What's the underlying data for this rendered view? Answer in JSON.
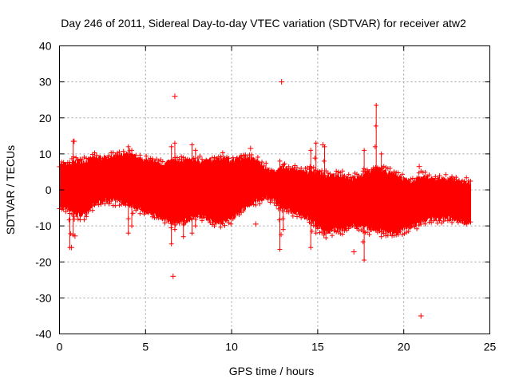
{
  "chart_data": {
    "type": "scatter",
    "title": "Day 246 of 2011, Sidereal Day-to-day VTEC variation (SDTVAR) for receiver atw2",
    "xlabel": "GPS time / hours",
    "ylabel": "SDTVAR / TECUs",
    "xlim": [
      0,
      25
    ],
    "ylim": [
      -40,
      40
    ],
    "xticks": [
      0,
      5,
      10,
      15,
      20,
      25
    ],
    "yticks": [
      -40,
      -30,
      -20,
      -10,
      0,
      10,
      20,
      30,
      40
    ],
    "grid": true,
    "color": "#ff0000",
    "marker": "plus",
    "envelope": {
      "x": [
        0.0,
        0.5,
        1.0,
        1.5,
        2.0,
        2.5,
        3.0,
        3.5,
        4.0,
        4.5,
        5.0,
        5.5,
        6.0,
        6.5,
        7.0,
        7.5,
        8.0,
        8.5,
        9.0,
        9.5,
        10.0,
        10.5,
        11.0,
        11.5,
        12.0,
        12.5,
        13.0,
        13.5,
        14.0,
        14.5,
        15.0,
        15.5,
        16.0,
        16.5,
        17.0,
        17.5,
        18.0,
        18.5,
        19.0,
        19.5,
        20.0,
        20.5,
        21.0,
        21.5,
        22.0,
        22.5,
        23.0,
        23.5,
        23.9
      ],
      "upper": [
        7,
        7,
        8,
        8,
        9,
        9,
        9,
        9.5,
        10,
        9,
        8,
        8,
        7,
        8,
        8,
        8,
        8,
        8,
        8.5,
        9,
        8,
        9,
        9,
        8,
        6,
        5,
        6,
        6,
        5,
        5,
        5,
        4,
        4,
        4,
        3,
        4,
        5,
        6,
        5,
        4,
        3,
        2,
        4,
        3,
        3,
        3,
        3,
        2,
        2
      ],
      "lower": [
        -5,
        -5,
        -7,
        -7,
        -4,
        -3,
        -3,
        -3,
        -4,
        -5,
        -6,
        -7,
        -8,
        -9,
        -9,
        -8,
        -7,
        -8,
        -9,
        -9,
        -8,
        -6,
        -4,
        -3,
        -2,
        -3,
        -5,
        -6,
        -7,
        -8,
        -10,
        -12,
        -11,
        -11,
        -10,
        -10,
        -11,
        -11,
        -12,
        -12,
        -11,
        -10,
        -9,
        -8,
        -8,
        -8,
        -8,
        -9,
        -9
      ]
    },
    "spikes": [
      {
        "x": 0.6,
        "y_min": -16,
        "y_max": 7
      },
      {
        "x": 0.8,
        "y_min": -12.5,
        "y_max": 13.5
      },
      {
        "x": 4.0,
        "y_min": -12,
        "y_max": 12
      },
      {
        "x": 4.2,
        "y_min": -10,
        "y_max": 11
      },
      {
        "x": 6.5,
        "y_min": -15,
        "y_max": 12
      },
      {
        "x": 6.7,
        "y_min": -11,
        "y_max": 13
      },
      {
        "x": 7.2,
        "y_min": -13,
        "y_max": 9
      },
      {
        "x": 7.7,
        "y_min": -12,
        "y_max": 12.5
      },
      {
        "x": 7.9,
        "y_min": -10,
        "y_max": 11
      },
      {
        "x": 12.8,
        "y_min": -16.5,
        "y_max": 8
      },
      {
        "x": 13.0,
        "y_min": -11,
        "y_max": 7
      },
      {
        "x": 14.6,
        "y_min": -16,
        "y_max": 11
      },
      {
        "x": 14.9,
        "y_min": -12,
        "y_max": 13
      },
      {
        "x": 15.4,
        "y_min": -12,
        "y_max": 12
      },
      {
        "x": 17.7,
        "y_min": -19.5,
        "y_max": 11
      },
      {
        "x": 18.4,
        "y_min": -11,
        "y_max": 23.5
      },
      {
        "x": 18.7,
        "y_min": -13,
        "y_max": 10
      }
    ],
    "outliers": [
      {
        "x": 12.9,
        "y": 30
      },
      {
        "x": 6.7,
        "y": 26
      },
      {
        "x": 6.6,
        "y": -24
      },
      {
        "x": 21.0,
        "y": -35
      },
      {
        "x": 0.7,
        "y": -16
      },
      {
        "x": 0.9,
        "y": -12.8
      },
      {
        "x": 0.85,
        "y": 13.5
      },
      {
        "x": 11.1,
        "y": 11.5
      },
      {
        "x": 11.4,
        "y": -9.5
      },
      {
        "x": 17.1,
        "y": -17.2
      },
      {
        "x": 15.3,
        "y": 12.5
      },
      {
        "x": 20.9,
        "y": 6.5
      }
    ]
  }
}
